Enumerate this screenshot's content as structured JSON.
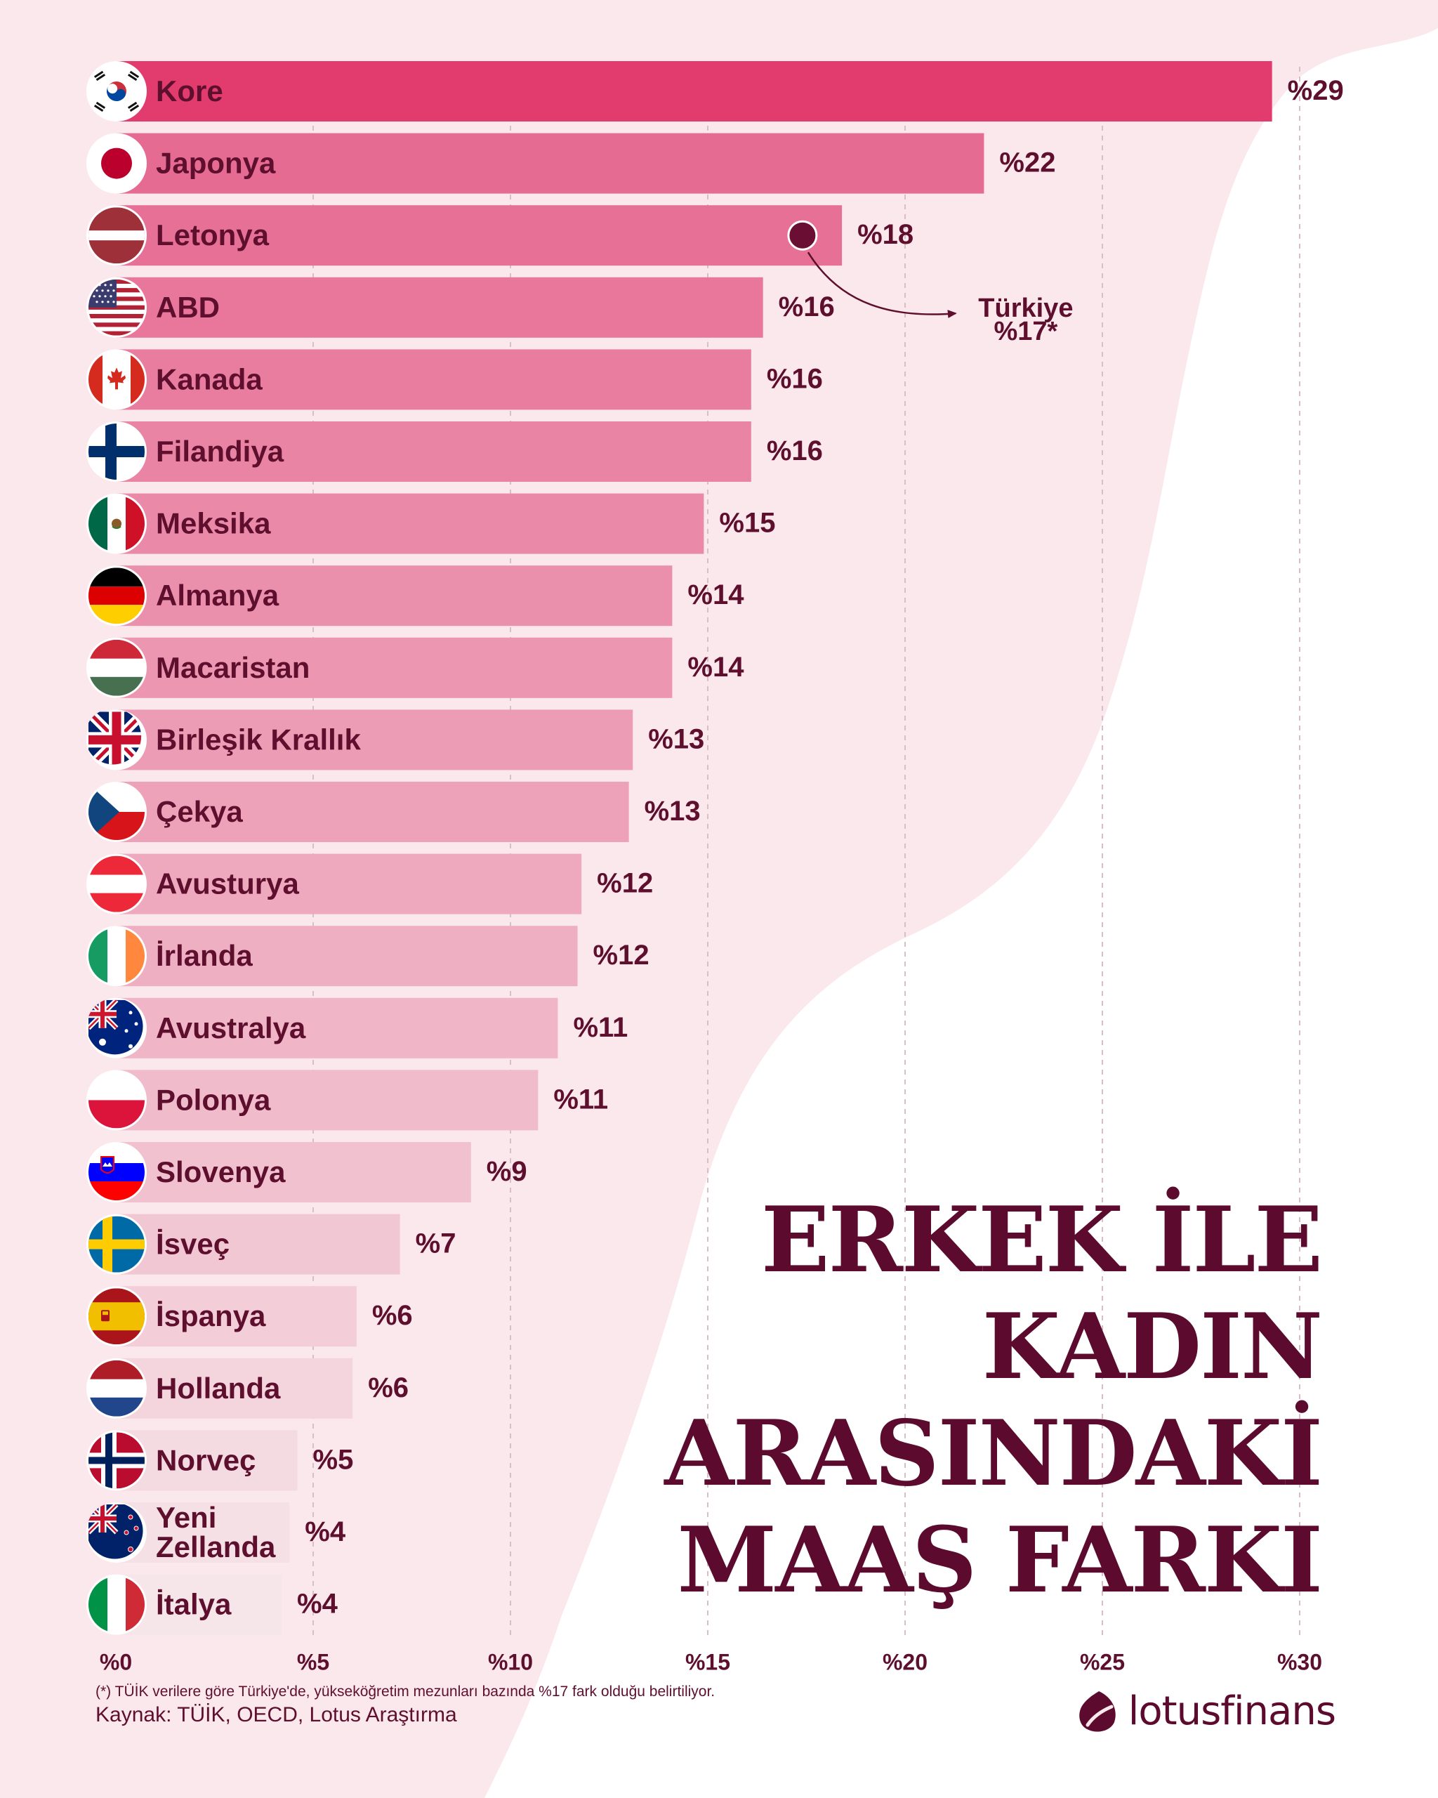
{
  "title_lines": [
    "ERKEK İLE",
    "KADIN",
    "ARASINDAKİ",
    "MAAŞ FARKI"
  ],
  "footnote": "(*) TÜİK verilere göre Türkiye'de, yükseköğretim mezunları bazında %17 fark olduğu belirtiliyor.",
  "source": "Kaynak: TÜİK, OECD, Lotus Araştırma",
  "brand": "lotusfinans",
  "colors": {
    "title": "#5c0b2f",
    "text": "#5e0f2e",
    "bar_top": "#e23c6f",
    "background_shape": "#fbe8ec"
  },
  "chart_data": {
    "type": "bar",
    "orientation": "horizontal",
    "categories": [
      "Kore",
      "Japonya",
      "Letonya",
      "ABD",
      "Kanada",
      "Filandiya",
      "Meksika",
      "Almanya",
      "Macaristan",
      "Birleşik Krallık",
      "Çekya",
      "Avusturya",
      "İrlanda",
      "Avustralya",
      "Polonya",
      "Slovenya",
      "İsveç",
      "İspanya",
      "Hollanda",
      "Norveç",
      "Yeni Zellanda",
      "İtalya"
    ],
    "category_lines": [
      [
        "Kore"
      ],
      [
        "Japonya"
      ],
      [
        "Letonya"
      ],
      [
        "ABD"
      ],
      [
        "Kanada"
      ],
      [
        "Filandiya"
      ],
      [
        "Meksika"
      ],
      [
        "Almanya"
      ],
      [
        "Macaristan"
      ],
      [
        "Birleşik Krallık"
      ],
      [
        "Çekya"
      ],
      [
        "Avusturya"
      ],
      [
        "İrlanda"
      ],
      [
        "Avustralya"
      ],
      [
        "Polonya"
      ],
      [
        "Slovenya"
      ],
      [
        "İsveç"
      ],
      [
        "İspanya"
      ],
      [
        "Hollanda"
      ],
      [
        "Norveç"
      ],
      [
        "Yeni",
        "Zellanda"
      ],
      [
        "İtalya"
      ]
    ],
    "values": [
      29.3,
      22,
      18.4,
      16.4,
      16.1,
      16.1,
      14.9,
      14.1,
      14.1,
      13.1,
      13,
      11.8,
      11.7,
      11.2,
      10.7,
      9,
      7.2,
      6.1,
      6,
      4.6,
      4.4,
      4.2
    ],
    "data_labels": [
      "%29",
      "%22",
      "%18",
      "%16",
      "%16",
      "%16",
      "%15",
      "%14",
      "%14",
      "%13",
      "%13",
      "%12",
      "%12",
      "%11",
      "%11",
      "%9",
      "%7",
      "%6",
      "%6",
      "%5",
      "%4",
      "%4"
    ],
    "flags": [
      "south-korea-flag",
      "japan-flag",
      "latvia-flag",
      "usa-flag",
      "canada-flag",
      "finland-flag",
      "mexico-flag",
      "germany-flag",
      "hungary-flag",
      "uk-flag",
      "czechia-flag",
      "austria-flag",
      "ireland-flag",
      "australia-flag",
      "poland-flag",
      "slovenia-flag",
      "sweden-flag",
      "spain-flag",
      "netherlands-flag",
      "norway-flag",
      "new-zealand-flag",
      "italy-flag"
    ],
    "x_ticks": [
      0,
      5,
      10,
      15,
      20,
      25,
      30
    ],
    "x_tick_labels": [
      "%0",
      "%5",
      "%10",
      "%15",
      "%20",
      "%25",
      "%30"
    ],
    "xlim": [
      0,
      30
    ],
    "grid": "dashed vertical",
    "annotation": {
      "label_line1": "Türkiye",
      "label_line2": "%17*",
      "value": 17.4,
      "row": "Letonya"
    }
  }
}
